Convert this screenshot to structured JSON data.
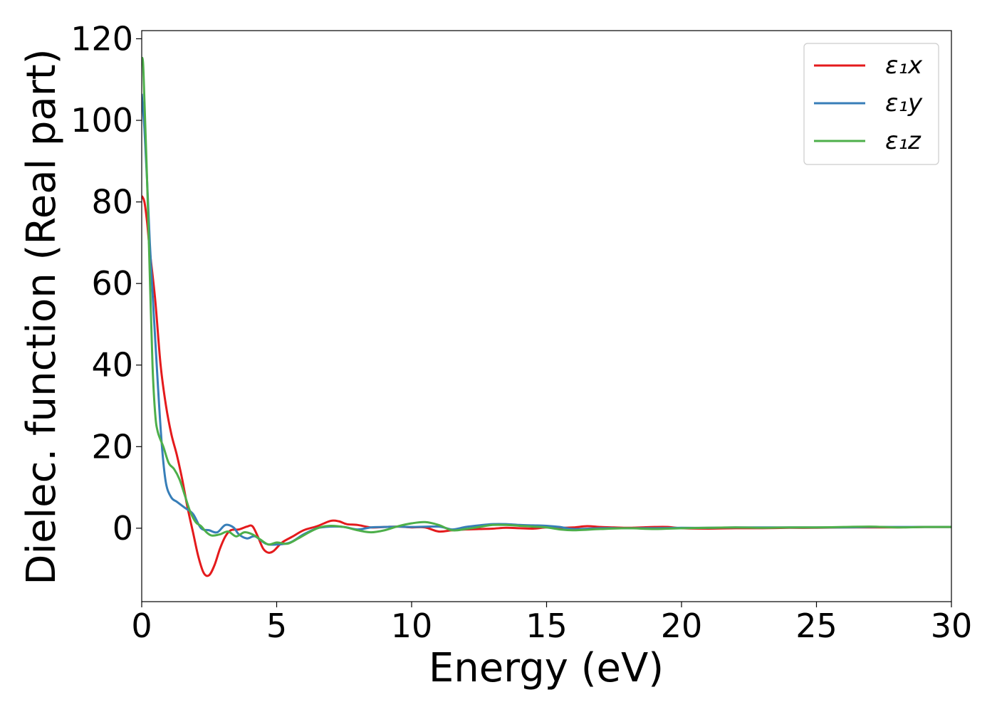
{
  "chart_data": {
    "type": "line",
    "xlabel": "Energy (eV)",
    "ylabel": "Dielec. function (Real part)",
    "xlim": [
      0,
      30
    ],
    "ylim": [
      -18,
      122
    ],
    "xticks": [
      0,
      5,
      10,
      15,
      20,
      25,
      30
    ],
    "xtick_labels": [
      "0",
      "5",
      "10",
      "15",
      "20",
      "25",
      "30"
    ],
    "yticks": [
      0,
      20,
      40,
      60,
      80,
      100,
      120
    ],
    "ytick_labels": [
      "0",
      "20",
      "40",
      "60",
      "80",
      "100",
      "120"
    ],
    "grid": false,
    "legend_position": "top-right",
    "series": [
      {
        "name": "ε₁x",
        "color": "#e41a1c",
        "x": [
          0,
          0.1,
          0.2,
          0.3,
          0.5,
          0.7,
          0.9,
          1.1,
          1.3,
          1.5,
          1.7,
          1.9,
          2.1,
          2.3,
          2.5,
          2.7,
          2.9,
          3.1,
          3.3,
          3.6,
          3.9,
          4.1,
          4.3,
          4.5,
          4.7,
          4.9,
          5.2,
          5.6,
          6.0,
          6.5,
          7.0,
          7.3,
          7.6,
          8.0,
          8.5,
          9.0,
          9.5,
          10.0,
          10.5,
          11.0,
          11.5,
          12.0,
          12.5,
          13.0,
          13.5,
          14.0,
          14.5,
          15.0,
          15.5,
          16.0,
          16.5,
          17.0,
          17.5,
          18.0,
          18.5,
          19.0,
          19.5,
          20.0,
          21,
          22,
          23,
          24,
          25,
          26,
          27,
          28,
          29,
          30
        ],
        "y": [
          81.5,
          80,
          75,
          68,
          56,
          40,
          30,
          23,
          18,
          12,
          5,
          -1,
          -7,
          -11,
          -11.5,
          -9,
          -5,
          -2,
          -0.5,
          -0.3,
          0.4,
          0.5,
          -2,
          -5,
          -6,
          -5.5,
          -3.5,
          -2,
          -0.5,
          0.5,
          1.8,
          1.7,
          1.0,
          0.8,
          0.2,
          0.3,
          0.4,
          0.2,
          0.2,
          -0.8,
          -0.5,
          -0.3,
          -0.2,
          -0.1,
          0.1,
          0,
          -0.1,
          0.2,
          0.1,
          0.2,
          0.5,
          0.3,
          0.2,
          0.1,
          0.2,
          0.3,
          0.3,
          0,
          -0.1,
          0,
          0,
          0.1,
          0.1,
          0.2,
          0.2,
          0.2,
          0.3,
          0.3
        ]
      },
      {
        "name": "ε₁y",
        "color": "#377eb8",
        "x": [
          0,
          0.1,
          0.2,
          0.3,
          0.45,
          0.6,
          0.75,
          0.9,
          1.1,
          1.3,
          1.6,
          1.9,
          2.2,
          2.5,
          2.8,
          3.1,
          3.4,
          3.6,
          3.9,
          4.2,
          4.6,
          5.0,
          5.5,
          6.0,
          6.5,
          7.0,
          7.5,
          8.0,
          8.5,
          9.0,
          9.5,
          10.0,
          11.0,
          11.5,
          12.0,
          12.5,
          13.0,
          13.5,
          14.0,
          14.5,
          15.0,
          15.5,
          16.0,
          17,
          18,
          19,
          20,
          21,
          22,
          23,
          24,
          25,
          26,
          27,
          28,
          29,
          30
        ],
        "y": [
          106.5,
          98,
          85,
          70,
          52,
          35,
          20,
          11,
          7.5,
          6.5,
          5,
          3.5,
          0,
          -0.5,
          -1,
          0.8,
          0.2,
          -1.5,
          -2.5,
          -2,
          -3.8,
          -4,
          -3.5,
          -1.5,
          0,
          0.4,
          0.3,
          -0.3,
          0.2,
          0.3,
          0.4,
          0.3,
          0.4,
          -0.3,
          0.3,
          0.7,
          1.0,
          1.0,
          0.8,
          0.7,
          0.6,
          0.3,
          -0.2,
          0,
          0,
          0,
          0.1,
          0.1,
          0.2,
          0.2,
          0.2,
          0.2,
          0.2,
          0.3,
          0.3,
          0.3,
          0.3
        ]
      },
      {
        "name": "ε₁z",
        "color": "#4daf4a",
        "x": [
          0,
          0.05,
          0.1,
          0.2,
          0.3,
          0.4,
          0.5,
          0.6,
          0.8,
          1.0,
          1.2,
          1.4,
          1.6,
          1.8,
          2.0,
          2.2,
          2.4,
          2.6,
          2.9,
          3.2,
          3.5,
          3.8,
          4.1,
          4.4,
          4.7,
          5.0,
          5.4,
          5.8,
          6.2,
          6.6,
          7.0,
          7.5,
          8.0,
          8.5,
          9.0,
          9.5,
          10.0,
          10.5,
          11.0,
          11.5,
          12.0,
          12.5,
          13.0,
          13.5,
          14.0,
          14.5,
          15.0,
          15.5,
          16.0,
          17,
          18,
          19,
          20,
          21,
          22,
          23,
          24,
          25,
          26,
          27,
          28,
          29,
          30
        ],
        "y": [
          115.5,
          114,
          105,
          85,
          62,
          40,
          28,
          23.5,
          20,
          16,
          14.5,
          12,
          8,
          4,
          1.5,
          0.5,
          -1,
          -1.8,
          -1.5,
          -0.8,
          -2,
          -1,
          -1.5,
          -2.8,
          -4,
          -3.5,
          -3.8,
          -2.5,
          -1,
          0.2,
          0.6,
          0.3,
          -0.5,
          -1,
          -0.5,
          0.5,
          1.2,
          1.5,
          0.8,
          -0.5,
          -0.2,
          0.3,
          0.8,
          0.8,
          0.6,
          0.4,
          0.2,
          -0.3,
          -0.5,
          -0.2,
          0,
          -0.2,
          0,
          0.1,
          0.2,
          0.1,
          0.2,
          0.2,
          0.3,
          0.4,
          0.2,
          0.3,
          0.3
        ]
      }
    ]
  }
}
